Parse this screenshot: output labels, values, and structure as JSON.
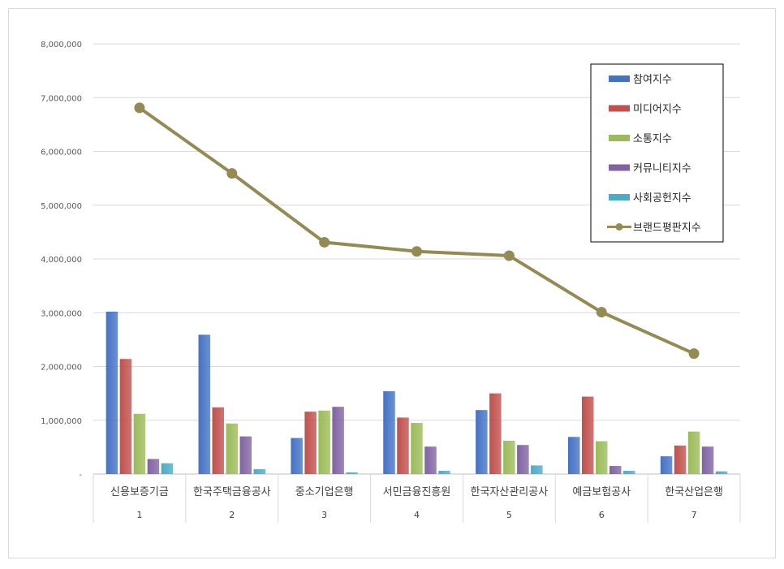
{
  "chart_data": {
    "type": "bar",
    "title": "",
    "xlabel": "",
    "ylabel": "",
    "ylim": [
      0,
      8000000
    ],
    "y_ticks": [
      "-",
      "1,000,000",
      "2,000,000",
      "3,000,000",
      "4,000,000",
      "5,000,000",
      "6,000,000",
      "7,000,000",
      "8,000,000"
    ],
    "y_tick_values": [
      0,
      1000000,
      2000000,
      3000000,
      4000000,
      5000000,
      6000000,
      7000000,
      8000000
    ],
    "categories": [
      "신용보증기금",
      "한국주택금융공사",
      "중소기업은행",
      "서민금융진흥원",
      "한국자산관리공사",
      "예금보험공사",
      "한국산업은행"
    ],
    "category_numbers": [
      "1",
      "2",
      "3",
      "4",
      "5",
      "6",
      "7"
    ],
    "grid": true,
    "legend_position": "top-right",
    "series": [
      {
        "name": "참여지수",
        "kind": "bar",
        "color": "#4472c4",
        "values": [
          3020000,
          2590000,
          670000,
          1540000,
          1190000,
          690000,
          330000
        ]
      },
      {
        "name": "미디어지수",
        "kind": "bar",
        "color": "#c0504d",
        "values": [
          2140000,
          1240000,
          1160000,
          1050000,
          1500000,
          1440000,
          530000
        ]
      },
      {
        "name": "소통지수",
        "kind": "bar",
        "color": "#9bbb59",
        "values": [
          1120000,
          940000,
          1180000,
          950000,
          620000,
          610000,
          790000
        ]
      },
      {
        "name": "커뮤니티지수",
        "kind": "bar",
        "color": "#8064a2",
        "values": [
          280000,
          700000,
          1250000,
          510000,
          540000,
          150000,
          510000
        ]
      },
      {
        "name": "사회공헌지수",
        "kind": "bar",
        "color": "#4bacc6",
        "values": [
          200000,
          90000,
          30000,
          60000,
          160000,
          60000,
          50000
        ]
      },
      {
        "name": "브랜드평판지수",
        "kind": "line",
        "color": "#948a54",
        "values": [
          6810000,
          5590000,
          4310000,
          4140000,
          4060000,
          3010000,
          2240000
        ]
      }
    ]
  }
}
